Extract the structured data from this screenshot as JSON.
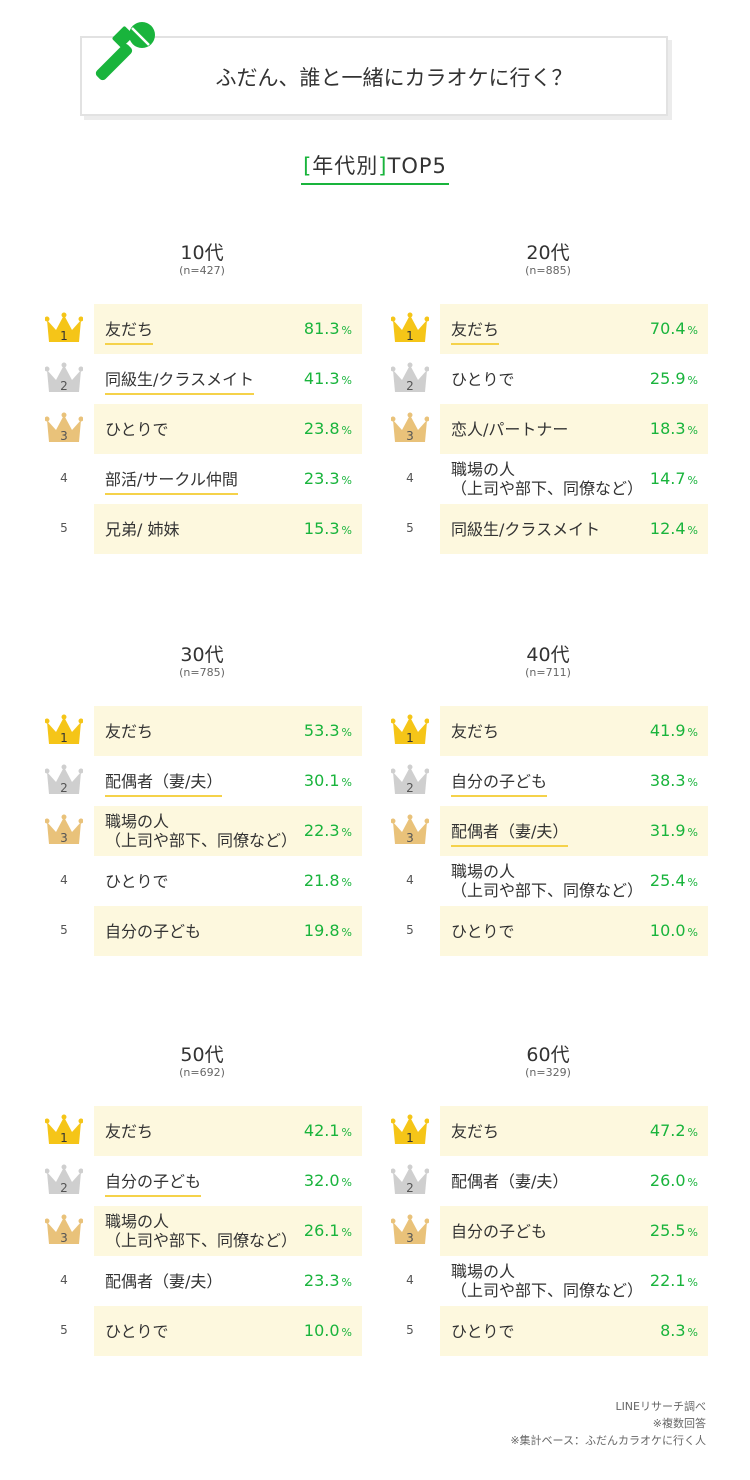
{
  "title": "ふだん、誰と一緒にカラオケに行く？",
  "subtitle": {
    "open": "[",
    "text": "年代別",
    "close": "]",
    "suffix": "TOP5"
  },
  "colors": {
    "accent": "#19b43c",
    "highlight": "#fdf8de",
    "underline": "#f5d24a",
    "gold": "#f5c518",
    "silver": "#cfcfcf",
    "bronze": "#e9c27a"
  },
  "icons": {
    "title": "microphone-icon",
    "rank1": "gold-crown-icon",
    "rank2": "silver-crown-icon",
    "rank3": "bronze-crown-icon"
  },
  "percent_unit": "%",
  "chart_data": [
    {
      "type": "table",
      "title": "10代",
      "n": "(n=427)",
      "rows": [
        {
          "rank": "1",
          "label": "友だち",
          "value": 81.3,
          "display": "81.3",
          "highlight": true,
          "underline": true
        },
        {
          "rank": "2",
          "label": "同級生/クラスメイト",
          "value": 41.3,
          "display": "41.3",
          "highlight": false,
          "underline": true
        },
        {
          "rank": "3",
          "label": "ひとりで",
          "value": 23.8,
          "display": "23.8",
          "highlight": true,
          "underline": false
        },
        {
          "rank": "4",
          "label": "部活/サークル仲間",
          "value": 23.3,
          "display": "23.3",
          "highlight": false,
          "underline": true
        },
        {
          "rank": "5",
          "label": "兄弟/ 姉妹",
          "value": 15.3,
          "display": "15.3",
          "highlight": true,
          "underline": false
        }
      ]
    },
    {
      "type": "table",
      "title": "20代",
      "n": "(n=885)",
      "rows": [
        {
          "rank": "1",
          "label": "友だち",
          "value": 70.4,
          "display": "70.4",
          "highlight": true,
          "underline": true
        },
        {
          "rank": "2",
          "label": "ひとりで",
          "value": 25.9,
          "display": "25.9",
          "highlight": false,
          "underline": false
        },
        {
          "rank": "3",
          "label": "恋人/パートナー",
          "value": 18.3,
          "display": "18.3",
          "highlight": true,
          "underline": false
        },
        {
          "rank": "4",
          "label": "職場の人\n（上司や部下、同僚など）",
          "value": 14.7,
          "display": "14.7",
          "highlight": false,
          "underline": false
        },
        {
          "rank": "5",
          "label": "同級生/クラスメイト",
          "value": 12.4,
          "display": "12.4",
          "highlight": true,
          "underline": false
        }
      ]
    },
    {
      "type": "table",
      "title": "30代",
      "n": "(n=785)",
      "rows": [
        {
          "rank": "1",
          "label": "友だち",
          "value": 53.3,
          "display": "53.3",
          "highlight": true,
          "underline": false
        },
        {
          "rank": "2",
          "label": "配偶者（妻/夫）",
          "value": 30.1,
          "display": "30.1",
          "highlight": false,
          "underline": true
        },
        {
          "rank": "3",
          "label": "職場の人\n（上司や部下、同僚など）",
          "value": 22.3,
          "display": "22.3",
          "highlight": true,
          "underline": false
        },
        {
          "rank": "4",
          "label": "ひとりで",
          "value": 21.8,
          "display": "21.8",
          "highlight": false,
          "underline": false
        },
        {
          "rank": "5",
          "label": "自分の子ども",
          "value": 19.8,
          "display": "19.8",
          "highlight": true,
          "underline": false
        }
      ]
    },
    {
      "type": "table",
      "title": "40代",
      "n": "(n=711)",
      "rows": [
        {
          "rank": "1",
          "label": "友だち",
          "value": 41.9,
          "display": "41.9",
          "highlight": true,
          "underline": false
        },
        {
          "rank": "2",
          "label": "自分の子ども",
          "value": 38.3,
          "display": "38.3",
          "highlight": false,
          "underline": true
        },
        {
          "rank": "3",
          "label": "配偶者（妻/夫）",
          "value": 31.9,
          "display": "31.9",
          "highlight": true,
          "underline": true
        },
        {
          "rank": "4",
          "label": "職場の人\n（上司や部下、同僚など）",
          "value": 25.4,
          "display": "25.4",
          "highlight": false,
          "underline": false
        },
        {
          "rank": "5",
          "label": "ひとりで",
          "value": 10.0,
          "display": "10.0",
          "highlight": true,
          "underline": false
        }
      ]
    },
    {
      "type": "table",
      "title": "50代",
      "n": "(n=692)",
      "rows": [
        {
          "rank": "1",
          "label": "友だち",
          "value": 42.1,
          "display": "42.1",
          "highlight": true,
          "underline": false
        },
        {
          "rank": "2",
          "label": "自分の子ども",
          "value": 32.0,
          "display": "32.0",
          "highlight": false,
          "underline": true
        },
        {
          "rank": "3",
          "label": "職場の人\n（上司や部下、同僚など）",
          "value": 26.1,
          "display": "26.1",
          "highlight": true,
          "underline": false
        },
        {
          "rank": "4",
          "label": "配偶者（妻/夫）",
          "value": 23.3,
          "display": "23.3",
          "highlight": false,
          "underline": false
        },
        {
          "rank": "5",
          "label": "ひとりで",
          "value": 10.0,
          "display": "10.0",
          "highlight": true,
          "underline": false
        }
      ]
    },
    {
      "type": "table",
      "title": "60代",
      "n": "(n=329)",
      "rows": [
        {
          "rank": "1",
          "label": "友だち",
          "value": 47.2,
          "display": "47.2",
          "highlight": true,
          "underline": false
        },
        {
          "rank": "2",
          "label": "配偶者（妻/夫）",
          "value": 26.0,
          "display": "26.0",
          "highlight": false,
          "underline": false
        },
        {
          "rank": "3",
          "label": "自分の子ども",
          "value": 25.5,
          "display": "25.5",
          "highlight": true,
          "underline": false
        },
        {
          "rank": "4",
          "label": "職場の人\n（上司や部下、同僚など）",
          "value": 22.1,
          "display": "22.1",
          "highlight": false,
          "underline": false
        },
        {
          "rank": "5",
          "label": "ひとりで",
          "value": 8.3,
          "display": "8.3",
          "highlight": true,
          "underline": false
        }
      ]
    }
  ],
  "footer": [
    "LINEリサーチ調べ",
    "※複数回答",
    "※集計ベース：ふだんカラオケに行く人"
  ]
}
